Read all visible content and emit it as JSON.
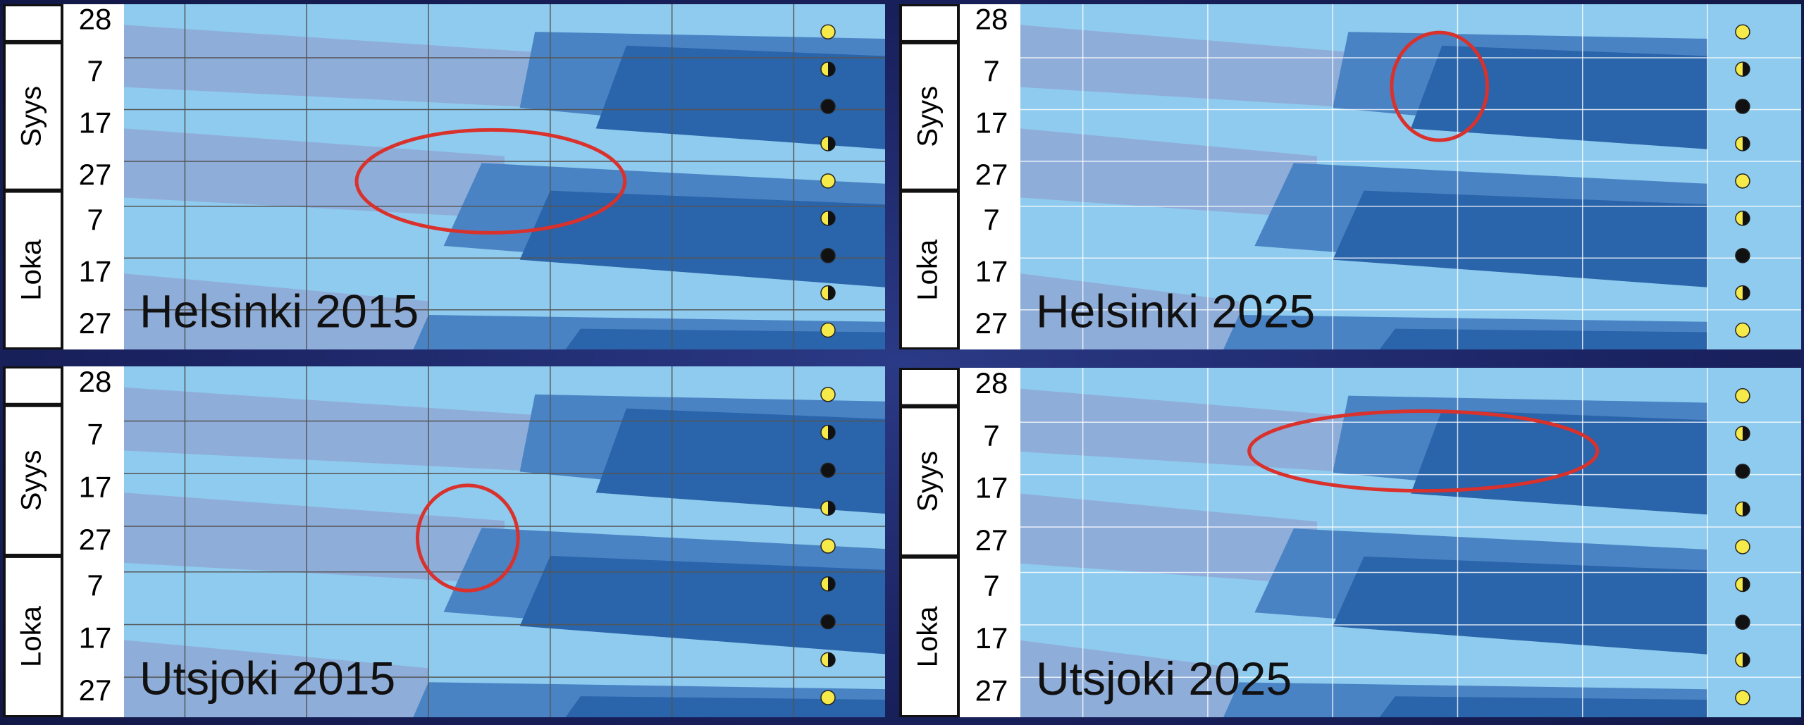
{
  "panels": [
    {
      "title": "Helsinki 2015",
      "months": [
        "Syys",
        "Loka"
      ],
      "days": [
        "28",
        "7",
        "17",
        "27",
        "7",
        "17",
        "27"
      ]
    },
    {
      "title": "Helsinki 2025",
      "months": [
        "Syys",
        "Loka"
      ],
      "days": [
        "28",
        "7",
        "17",
        "27",
        "7",
        "17",
        "27"
      ]
    },
    {
      "title": "Utsjoki 2015",
      "months": [
        "Syys",
        "Loka"
      ],
      "days": [
        "28",
        "7",
        "17",
        "27",
        "7",
        "17",
        "27"
      ]
    },
    {
      "title": "Utsjoki 2025",
      "months": [
        "Syys",
        "Loka"
      ],
      "days": [
        "28",
        "7",
        "17",
        "27",
        "7",
        "17",
        "27"
      ]
    }
  ]
}
